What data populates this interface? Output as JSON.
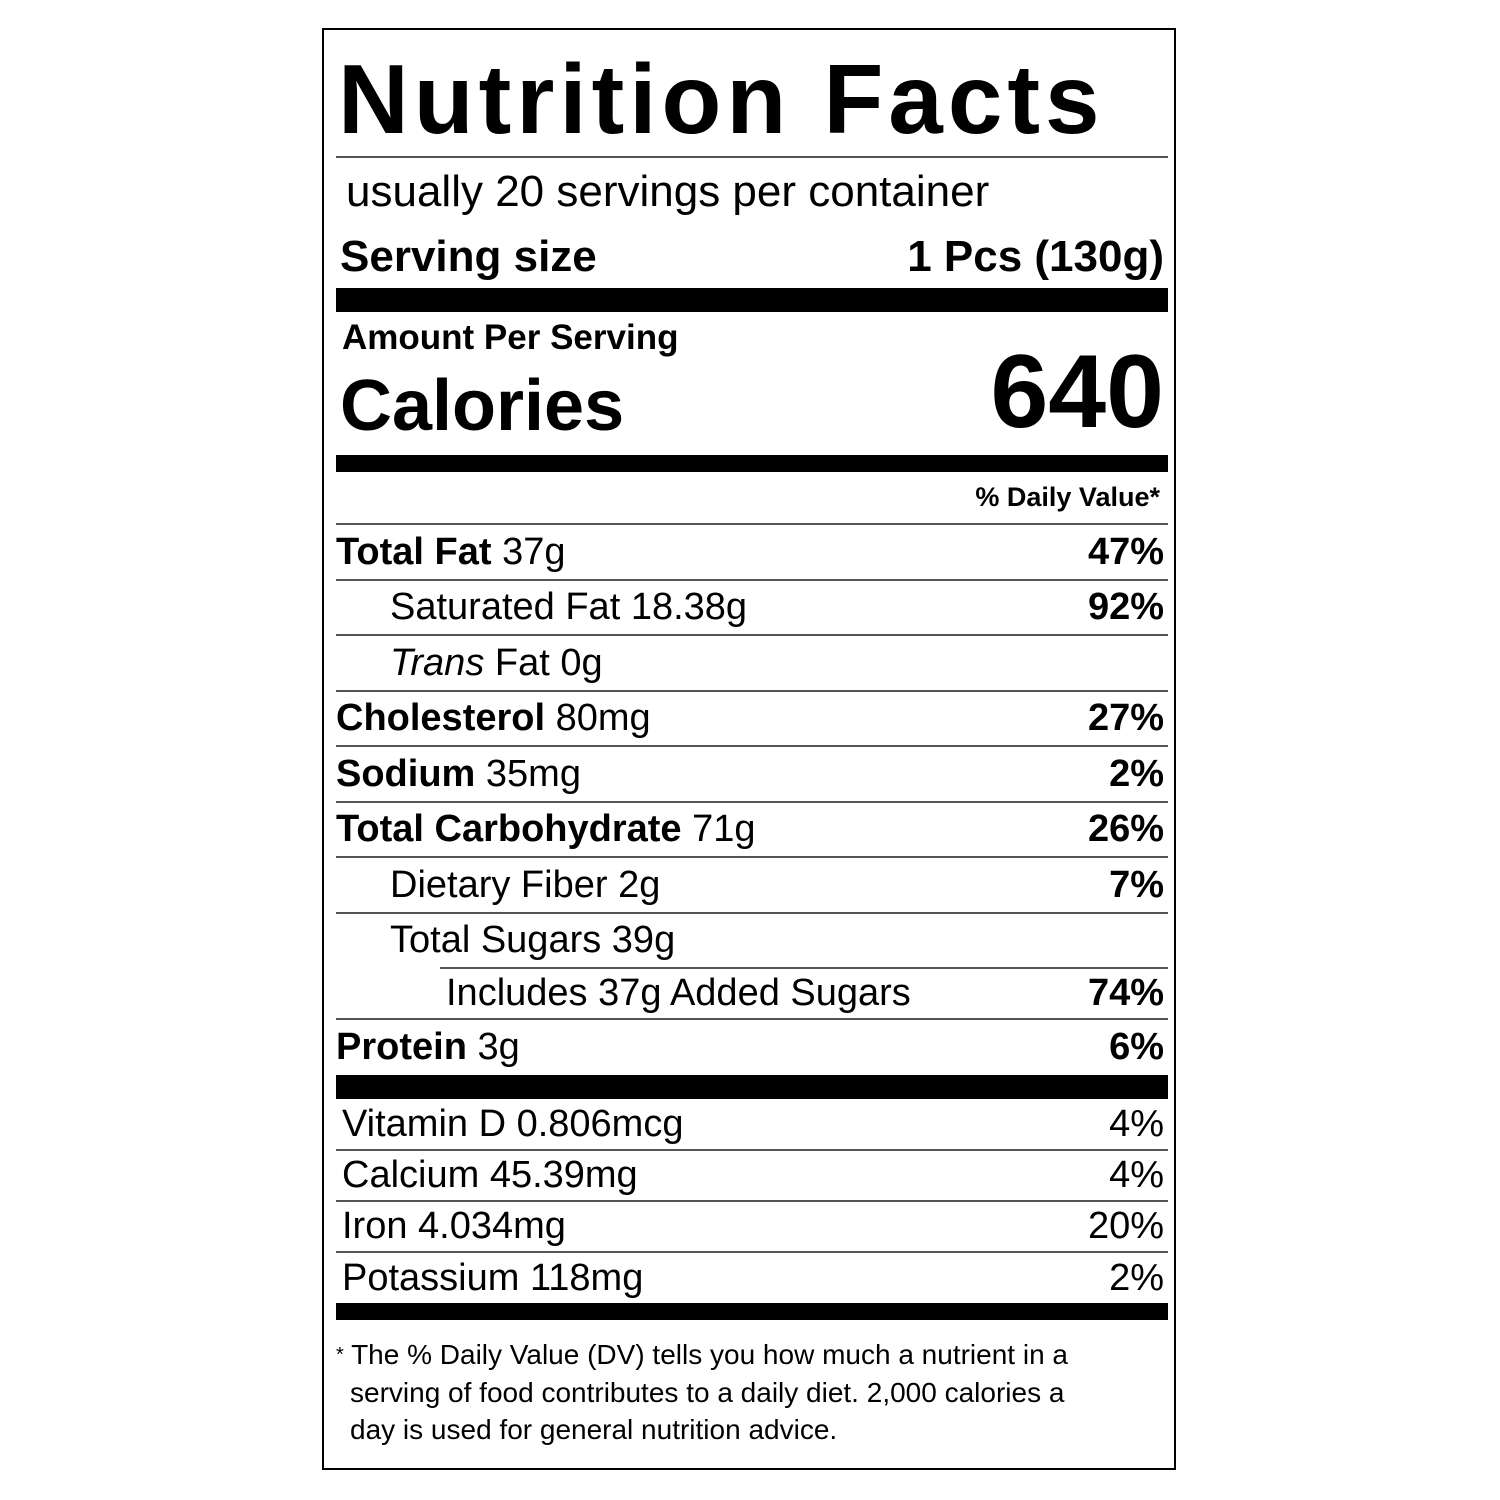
{
  "title": "Nutrition Facts",
  "servings_per_container": "usually 20 servings per container",
  "serving_size": {
    "label": "Serving size",
    "value": "1 Pcs (130g)"
  },
  "amount_per_serving": "Amount Per Serving",
  "calories": {
    "label": "Calories",
    "value": "640"
  },
  "daily_value_header": "% Daily Value*",
  "nutrients": [
    {
      "name": "Total Fat",
      "amount": "37g",
      "dv": "47%"
    },
    {
      "name": "Saturated Fat",
      "amount": "18.38g",
      "dv": "92%"
    },
    {
      "name": "Trans",
      "name_rest": "Fat",
      "amount": "0g",
      "dv": ""
    },
    {
      "name": "Cholesterol",
      "amount": "80mg",
      "dv": "27%"
    },
    {
      "name": "Sodium",
      "amount": "35mg",
      "dv": "2%"
    },
    {
      "name": "Total Carbohydrate",
      "amount": "71g",
      "dv": "26%"
    },
    {
      "name": "Dietary Fiber",
      "amount": "2g",
      "dv": "7%"
    },
    {
      "name": "Total Sugars",
      "amount": "39g",
      "dv": ""
    },
    {
      "name": "Includes 37g Added Sugars",
      "amount": "",
      "dv": "74%"
    },
    {
      "name": "Protein",
      "amount": "3g",
      "dv": "6%"
    }
  ],
  "vitamins": [
    {
      "name": "Vitamin D",
      "amount": "0.806mcg",
      "dv": "4%"
    },
    {
      "name": "Calcium",
      "amount": "45.39mg",
      "dv": "4%"
    },
    {
      "name": "Iron",
      "amount": "4.034mg",
      "dv": "20%"
    },
    {
      "name": "Potassium",
      "amount": "118mg",
      "dv": "2%"
    }
  ],
  "footnote": {
    "star": "*",
    "lines": [
      "The % Daily Value (DV) tells you how much a nutrient in a",
      "serving of food contributes to a daily diet. 2,000 calories a",
      "day is used for general nutrition advice."
    ]
  }
}
